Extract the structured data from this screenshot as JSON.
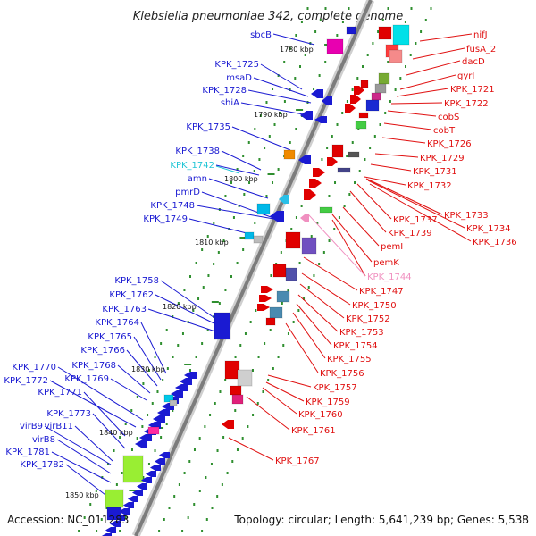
{
  "title": "Klebsiella pneumoniae 342, complete genome",
  "footer": {
    "accession": "Accession: NC_011283",
    "topology": "Topology: circular; Length: 5,641,239 bp; Genes: 5,538"
  },
  "colors": {
    "reverse_label": "#1a1ad2",
    "forward_label": "#e01010",
    "highlight_cyan": "#22c6d6",
    "highlight_pink": "#f090c0",
    "backbone": "#888888"
  },
  "kbp_labels": [
    "1780 kbp",
    "1790 kbp",
    "1800 kbp",
    "1810 kbp",
    "1820 kbp",
    "1830 kbp",
    "1840 kbp",
    "1850 kbp"
  ],
  "left_labels": [
    {
      "text": "sbcB",
      "color": "blue"
    },
    {
      "text": "KPK_1725",
      "color": "blue"
    },
    {
      "text": "msaD",
      "color": "blue"
    },
    {
      "text": "KPK_1728",
      "color": "blue"
    },
    {
      "text": "shiA",
      "color": "blue"
    },
    {
      "text": "KPK_1735",
      "color": "blue"
    },
    {
      "text": "KPK_1738",
      "color": "blue"
    },
    {
      "text": "KPK_1742",
      "color": "cyan"
    },
    {
      "text": "amn",
      "color": "blue"
    },
    {
      "text": "pmrD",
      "color": "blue"
    },
    {
      "text": "KPK_1748",
      "color": "blue"
    },
    {
      "text": "KPK_1749",
      "color": "blue"
    },
    {
      "text": "KPK_1758",
      "color": "blue"
    },
    {
      "text": "KPK_1762",
      "color": "blue"
    },
    {
      "text": "KPK_1763",
      "color": "blue"
    },
    {
      "text": "KPK_1764",
      "color": "blue"
    },
    {
      "text": "KPK_1765",
      "color": "blue"
    },
    {
      "text": "KPK_1766",
      "color": "blue"
    },
    {
      "text": "KPK_1770",
      "color": "blue"
    },
    {
      "text": "KPK_1768",
      "color": "blue"
    },
    {
      "text": "KPK_1772",
      "color": "blue"
    },
    {
      "text": "KPK_1769",
      "color": "blue"
    },
    {
      "text": "KPK_1771",
      "color": "blue"
    },
    {
      "text": "KPK_1773",
      "color": "blue"
    },
    {
      "text": "virB9",
      "color": "blue"
    },
    {
      "text": "virB11",
      "color": "blue"
    },
    {
      "text": "virB8",
      "color": "blue"
    },
    {
      "text": "KPK_1781",
      "color": "blue"
    },
    {
      "text": "KPK_1782",
      "color": "blue"
    }
  ],
  "right_labels": [
    {
      "text": "nifJ",
      "color": "red"
    },
    {
      "text": "fusA_2",
      "color": "red"
    },
    {
      "text": "dacD",
      "color": "red"
    },
    {
      "text": "gyrI",
      "color": "red"
    },
    {
      "text": "KPK_1721",
      "color": "red"
    },
    {
      "text": "KPK_1722",
      "color": "red"
    },
    {
      "text": "cobS",
      "color": "red"
    },
    {
      "text": "cobT",
      "color": "red"
    },
    {
      "text": "KPK_1726",
      "color": "red"
    },
    {
      "text": "KPK_1729",
      "color": "red"
    },
    {
      "text": "KPK_1731",
      "color": "red"
    },
    {
      "text": "KPK_1732",
      "color": "red"
    },
    {
      "text": "KPK_1733",
      "color": "red"
    },
    {
      "text": "KPK_1737",
      "color": "red"
    },
    {
      "text": "KPK_1734",
      "color": "red"
    },
    {
      "text": "KPK_1739",
      "color": "red"
    },
    {
      "text": "KPK_1736",
      "color": "red"
    },
    {
      "text": "pemI",
      "color": "red"
    },
    {
      "text": "pemK",
      "color": "red"
    },
    {
      "text": "KPK_1744",
      "color": "pink"
    },
    {
      "text": "KPK_1747",
      "color": "red"
    },
    {
      "text": "KPK_1750",
      "color": "red"
    },
    {
      "text": "KPK_1752",
      "color": "red"
    },
    {
      "text": "KPK_1753",
      "color": "red"
    },
    {
      "text": "KPK_1754",
      "color": "red"
    },
    {
      "text": "KPK_1755",
      "color": "red"
    },
    {
      "text": "KPK_1756",
      "color": "red"
    },
    {
      "text": "KPK_1757",
      "color": "red"
    },
    {
      "text": "KPK_1759",
      "color": "red"
    },
    {
      "text": "KPK_1760",
      "color": "red"
    },
    {
      "text": "KPK_1761",
      "color": "red"
    },
    {
      "text": "KPK_1767",
      "color": "red"
    }
  ]
}
